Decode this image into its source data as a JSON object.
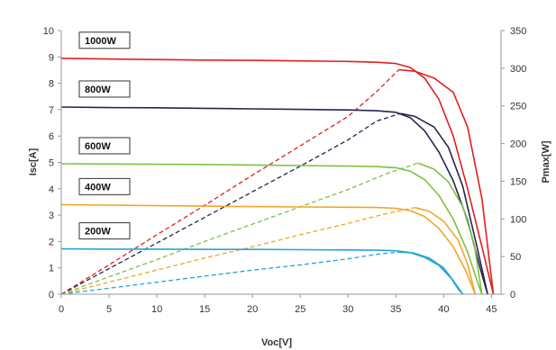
{
  "chart_data": {
    "type": "line",
    "xlabel": "Voc[V]",
    "ylabel_left": "Isc[A]",
    "ylabel_right": "Pmax[W]",
    "xlim": [
      0,
      46
    ],
    "ylim_left": [
      0,
      10
    ],
    "ylim_right": [
      0,
      350
    ],
    "xticks": [
      "0",
      "5",
      "10",
      "15",
      "20",
      "25",
      "30",
      "35",
      "40",
      "45"
    ],
    "yticks_left": [
      "0",
      "1",
      "2",
      "3",
      "4",
      "5",
      "6",
      "7",
      "8",
      "9",
      "10"
    ],
    "yticks_right": [
      "0",
      "50",
      "100",
      "150",
      "200",
      "250",
      "300",
      "350"
    ],
    "grid": false,
    "series": [
      {
        "name": "1000W",
        "color": "#e02020",
        "iv_curve": [
          [
            0,
            8.95
          ],
          [
            5,
            8.92
          ],
          [
            10,
            8.9
          ],
          [
            15,
            8.88
          ],
          [
            20,
            8.87
          ],
          [
            25,
            8.85
          ],
          [
            30,
            8.83
          ],
          [
            33,
            8.8
          ],
          [
            35,
            8.75
          ],
          [
            36.5,
            8.6
          ],
          [
            38,
            8.2
          ],
          [
            39.5,
            7.4
          ],
          [
            41,
            6.0
          ],
          [
            42.5,
            4.0
          ],
          [
            44,
            1.8
          ],
          [
            45.2,
            0
          ]
        ],
        "pv_curve": [
          [
            0,
            0
          ],
          [
            5,
            39
          ],
          [
            10,
            79
          ],
          [
            15,
            118
          ],
          [
            20,
            158
          ],
          [
            25,
            197
          ],
          [
            30,
            236
          ],
          [
            33,
            269
          ],
          [
            35.3,
            298
          ],
          [
            37,
            296
          ],
          [
            39,
            287
          ],
          [
            41,
            268
          ],
          [
            42.5,
            222
          ],
          [
            44,
            127
          ],
          [
            45.2,
            0
          ]
        ]
      },
      {
        "name": "800W",
        "color": "#252550",
        "iv_curve": [
          [
            0,
            7.1
          ],
          [
            5,
            7.08
          ],
          [
            10,
            7.07
          ],
          [
            15,
            7.05
          ],
          [
            20,
            7.03
          ],
          [
            25,
            7.01
          ],
          [
            30,
            6.99
          ],
          [
            33,
            6.96
          ],
          [
            35,
            6.9
          ],
          [
            36.5,
            6.7
          ],
          [
            38,
            6.2
          ],
          [
            39.5,
            5.4
          ],
          [
            41,
            4.3
          ],
          [
            42.5,
            2.8
          ],
          [
            43.8,
            1.0
          ],
          [
            44.6,
            0
          ]
        ],
        "pv_curve": [
          [
            0,
            0
          ],
          [
            5,
            34
          ],
          [
            10,
            68
          ],
          [
            15,
            102
          ],
          [
            20,
            136
          ],
          [
            25,
            170
          ],
          [
            30,
            205
          ],
          [
            33,
            230
          ],
          [
            35.5,
            240
          ],
          [
            37,
            236
          ],
          [
            39,
            222
          ],
          [
            40.5,
            195
          ],
          [
            42,
            143
          ],
          [
            43.5,
            62
          ],
          [
            44.6,
            0
          ]
        ]
      },
      {
        "name": "600W",
        "color": "#7cc242",
        "iv_curve": [
          [
            0,
            4.95
          ],
          [
            5,
            4.94
          ],
          [
            10,
            4.93
          ],
          [
            15,
            4.92
          ],
          [
            20,
            4.9
          ],
          [
            25,
            4.88
          ],
          [
            30,
            4.86
          ],
          [
            33,
            4.84
          ],
          [
            35,
            4.8
          ],
          [
            36.5,
            4.67
          ],
          [
            38,
            4.35
          ],
          [
            39.5,
            3.75
          ],
          [
            41,
            2.85
          ],
          [
            42.5,
            1.6
          ],
          [
            43.6,
            0.4
          ],
          [
            44.0,
            0
          ]
        ],
        "pv_curve": [
          [
            0,
            0
          ],
          [
            5,
            23
          ],
          [
            10,
            46
          ],
          [
            15,
            70
          ],
          [
            20,
            93
          ],
          [
            25,
            116
          ],
          [
            30,
            139
          ],
          [
            34,
            160
          ],
          [
            37.3,
            174
          ],
          [
            39,
            166
          ],
          [
            40.5,
            149
          ],
          [
            42,
            116
          ],
          [
            43.2,
            66
          ],
          [
            44.0,
            0
          ]
        ]
      },
      {
        "name": "400W",
        "color": "#f2a52a",
        "iv_curve": [
          [
            0,
            3.4
          ],
          [
            5,
            3.38
          ],
          [
            10,
            3.36
          ],
          [
            15,
            3.34
          ],
          [
            20,
            3.32
          ],
          [
            25,
            3.31
          ],
          [
            30,
            3.3
          ],
          [
            33,
            3.29
          ],
          [
            35,
            3.26
          ],
          [
            36.5,
            3.17
          ],
          [
            38,
            2.95
          ],
          [
            39.5,
            2.5
          ],
          [
            41,
            1.8
          ],
          [
            42.3,
            0.9
          ],
          [
            43.3,
            0
          ]
        ],
        "pv_curve": [
          [
            0,
            0
          ],
          [
            5,
            16
          ],
          [
            10,
            32
          ],
          [
            15,
            48
          ],
          [
            20,
            63
          ],
          [
            25,
            79
          ],
          [
            30,
            94
          ],
          [
            34,
            107
          ],
          [
            37,
            115
          ],
          [
            38.5,
            110
          ],
          [
            40,
            97
          ],
          [
            41.5,
            72
          ],
          [
            42.5,
            40
          ],
          [
            43.3,
            0
          ]
        ]
      },
      {
        "name": "200W",
        "color": "#23a6d9",
        "iv_curve": [
          [
            0,
            1.72
          ],
          [
            5,
            1.71
          ],
          [
            10,
            1.71
          ],
          [
            15,
            1.7
          ],
          [
            20,
            1.7
          ],
          [
            25,
            1.69
          ],
          [
            30,
            1.68
          ],
          [
            33,
            1.67
          ],
          [
            35,
            1.65
          ],
          [
            36.5,
            1.58
          ],
          [
            38,
            1.4
          ],
          [
            39.5,
            1.1
          ],
          [
            40.8,
            0.6
          ],
          [
            41.5,
            0.2
          ],
          [
            42.0,
            0
          ]
        ],
        "pv_curve": [
          [
            0,
            0
          ],
          [
            5,
            8
          ],
          [
            10,
            16
          ],
          [
            15,
            24
          ],
          [
            20,
            32
          ],
          [
            25,
            39
          ],
          [
            30,
            47
          ],
          [
            33,
            53
          ],
          [
            35.2,
            56
          ],
          [
            36.8,
            55
          ],
          [
            38.5,
            48
          ],
          [
            40,
            35
          ],
          [
            41,
            18
          ],
          [
            42.0,
            0
          ]
        ]
      }
    ]
  }
}
